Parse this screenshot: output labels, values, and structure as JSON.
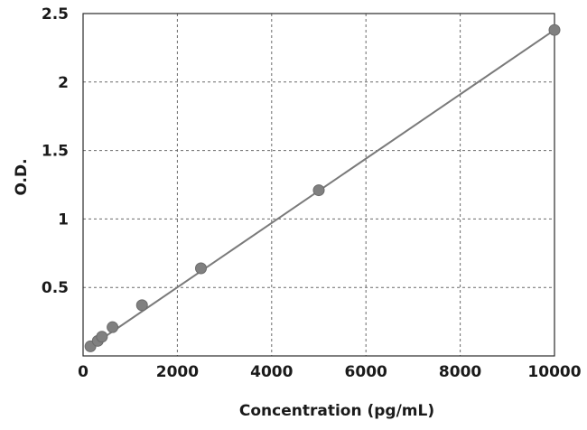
{
  "chart_data": {
    "type": "scatter",
    "title": "",
    "xlabel": "Concentration (pg/mL)",
    "ylabel": "O.D.",
    "xlim": [
      0,
      10000
    ],
    "ylim": [
      0,
      2.5
    ],
    "xticks": [
      0,
      2000,
      4000,
      6000,
      8000,
      10000
    ],
    "yticks": [
      0.5,
      1,
      1.5,
      2,
      2.5
    ],
    "xtick_labels": [
      "0",
      "2000",
      "4000",
      "6000",
      "8000",
      "10000"
    ],
    "ytick_labels": [
      "0.5",
      "1",
      "1.5",
      "2",
      "2.5"
    ],
    "grid": true,
    "legend": "none",
    "marker_color": "#808080",
    "line_color": "#7a7a7a",
    "series": [
      {
        "points": [
          {
            "x": 156,
            "y": 0.07
          },
          {
            "x": 312,
            "y": 0.11
          },
          {
            "x": 400,
            "y": 0.14
          },
          {
            "x": 625,
            "y": 0.21
          },
          {
            "x": 1250,
            "y": 0.37
          },
          {
            "x": 2500,
            "y": 0.64
          },
          {
            "x": 5000,
            "y": 1.21
          },
          {
            "x": 10000,
            "y": 2.38
          }
        ],
        "fit_line": [
          {
            "x": 80,
            "y": 0.05
          },
          {
            "x": 10000,
            "y": 2.38
          }
        ]
      }
    ]
  }
}
